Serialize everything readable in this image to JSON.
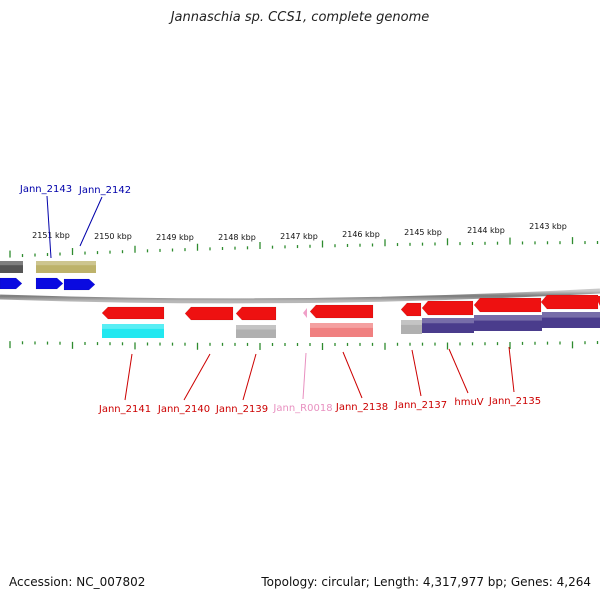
{
  "title": "Jannaschia sp. CCS1, complete genome",
  "footer": {
    "accession": "Accession: NC_007802",
    "summary": "Topology: circular; Length: 4,317,977 bp; Genes: 4,264"
  },
  "ruler": {
    "unit": "kbp",
    "ticks": [
      "2151 kbp",
      "2150 kbp",
      "2149 kbp",
      "2148 kbp",
      "2147 kbp",
      "2146 kbp",
      "2145 kbp",
      "2144 kbp",
      "2143 kbp"
    ]
  },
  "colors": {
    "backbone": "#8a8a8a",
    "tick": "#2e8b2e",
    "gene_red": "#ee1111",
    "gene_blue": "#0a0ae0",
    "cds_cyan": "#22e8f0",
    "cds_gray": "#b0b0b0",
    "cds_salmon": "#f08080",
    "cds_olive": "#bdb26a",
    "cds_navy": "#4a3c8c",
    "rna_pink": "#f0a0c8",
    "label_blue": "#0000aa",
    "label_red": "#cc0000",
    "label_pink": "#e890c0"
  },
  "labels_top": [
    "Jann_2143",
    "Jann_2142"
  ],
  "labels_bottom": [
    "Jann_2141",
    "Jann_2140",
    "Jann_2139",
    "Jann_R0018",
    "Jann_2138",
    "Jann_2137",
    "hmuV",
    "Jann_2135"
  ]
}
